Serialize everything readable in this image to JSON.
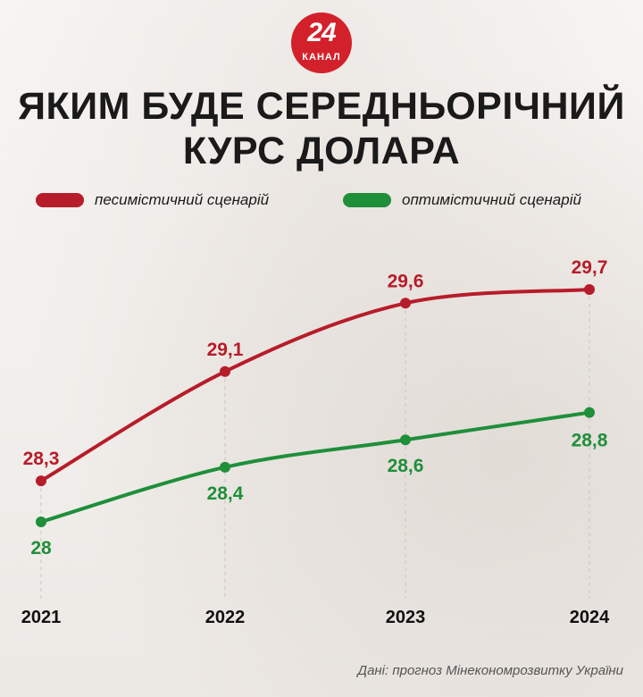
{
  "logo": {
    "number": "24",
    "text": "КАНАЛ"
  },
  "title_line1": "ЯКИМ БУДЕ СЕРЕДНЬОРІЧНИЙ",
  "title_line2": "КУРС ДОЛАРА",
  "footer": "Дані: прогноз Мінекономрозвитку України",
  "colors": {
    "pessimistic": "#b71c2a",
    "optimistic": "#1f8f3a"
  },
  "chart_data": {
    "type": "line",
    "categories": [
      "2021",
      "2022",
      "2023",
      "2024"
    ],
    "series": [
      {
        "name": "песимістичний сценарій",
        "values": [
          28.3,
          29.1,
          29.6,
          29.7
        ],
        "labels": [
          "28,3",
          "29,1",
          "29,6",
          "29,7"
        ]
      },
      {
        "name": "оптимістичний сценарій",
        "values": [
          28,
          28.4,
          28.6,
          28.8
        ],
        "labels": [
          "28",
          "28,4",
          "28,6",
          "28,8"
        ]
      }
    ],
    "legend": "top",
    "grid": false
  }
}
